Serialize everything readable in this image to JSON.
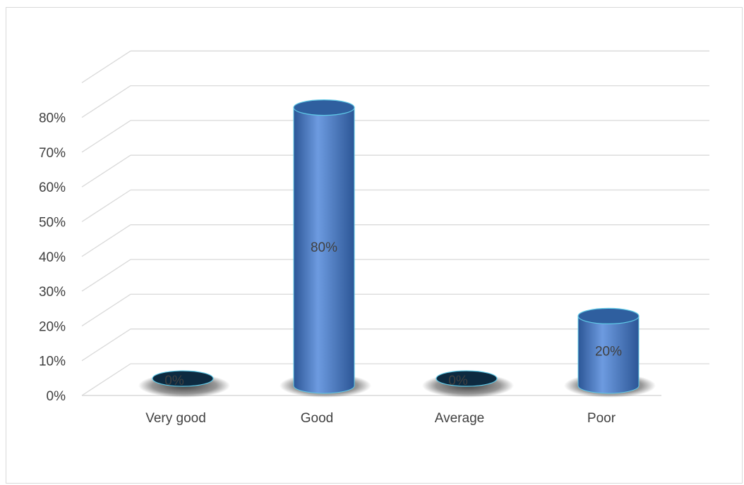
{
  "chart_data": {
    "type": "bar",
    "style": "3d-cylinder",
    "categories": [
      "Very good",
      "Good",
      "Average",
      "Poor"
    ],
    "values": [
      0,
      80,
      0,
      20
    ],
    "data_labels": [
      "0%",
      "80%",
      "0%",
      "20%"
    ],
    "y_ticks": [
      "0%",
      "10%",
      "20%",
      "30%",
      "40%",
      "50%",
      "60%",
      "70%",
      "80%"
    ],
    "ylim": [
      0,
      90
    ],
    "unit": "%",
    "grid": true,
    "legend": "none",
    "title": "",
    "xlabel": "",
    "ylabel": "",
    "colors": {
      "bar_fill": "#3f78c0",
      "bar_light": "#6d9be0",
      "bar_dark": "#2c5696",
      "bar_top": "#2f5f9f",
      "bar_outline": "#5ec8e6",
      "grid": "#d9d9d9",
      "text": "#404040",
      "shadow": "#1a1a1a",
      "empty_disk": "#0d2a40"
    }
  }
}
